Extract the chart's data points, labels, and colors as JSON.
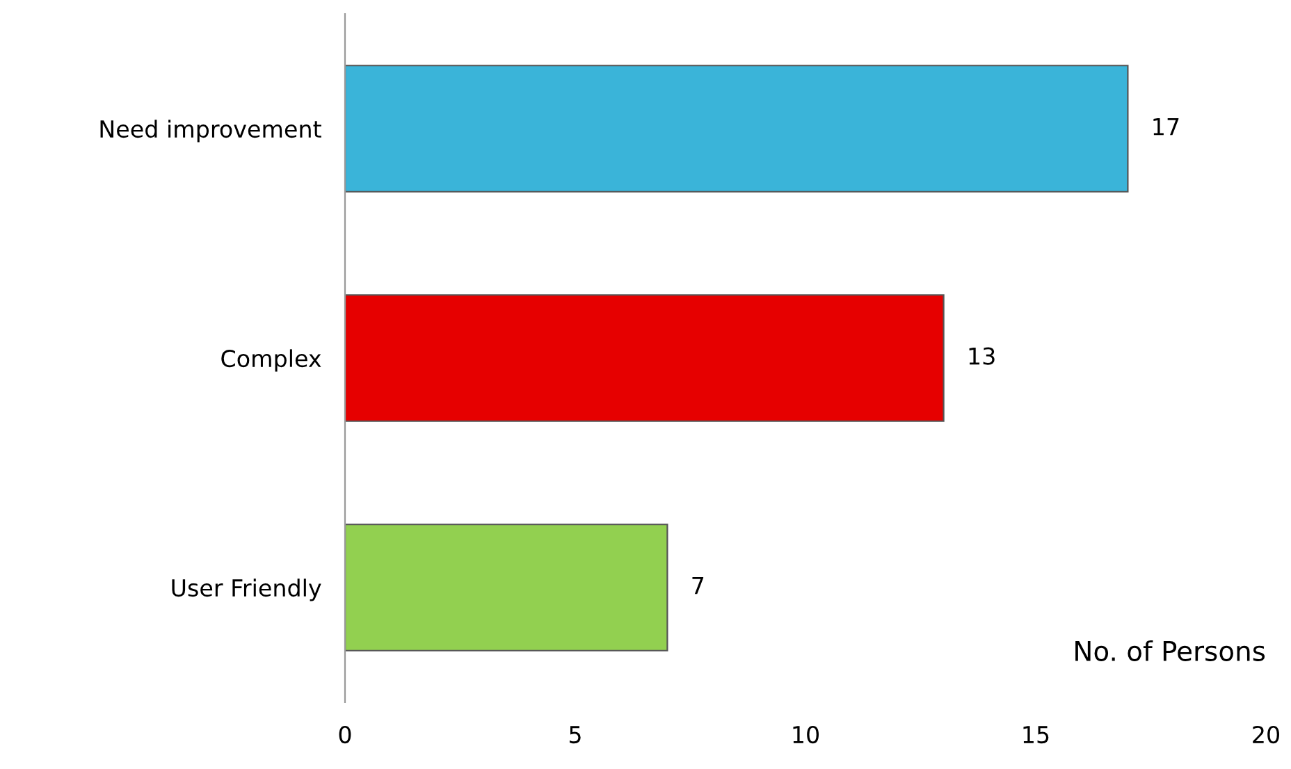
{
  "chart_data": {
    "type": "bar",
    "orientation": "horizontal",
    "xlabel": "No. of Persons",
    "categories": [
      "Need improvement",
      "Complex",
      "User Friendly"
    ],
    "values": [
      17,
      13,
      7
    ],
    "colors": [
      "#3ab4d9",
      "#e60000",
      "#92d050"
    ],
    "xlim": [
      0,
      20
    ],
    "xticks": [
      0,
      5,
      10,
      15,
      20
    ],
    "data_labels": true,
    "grid": false,
    "legend": false
  }
}
